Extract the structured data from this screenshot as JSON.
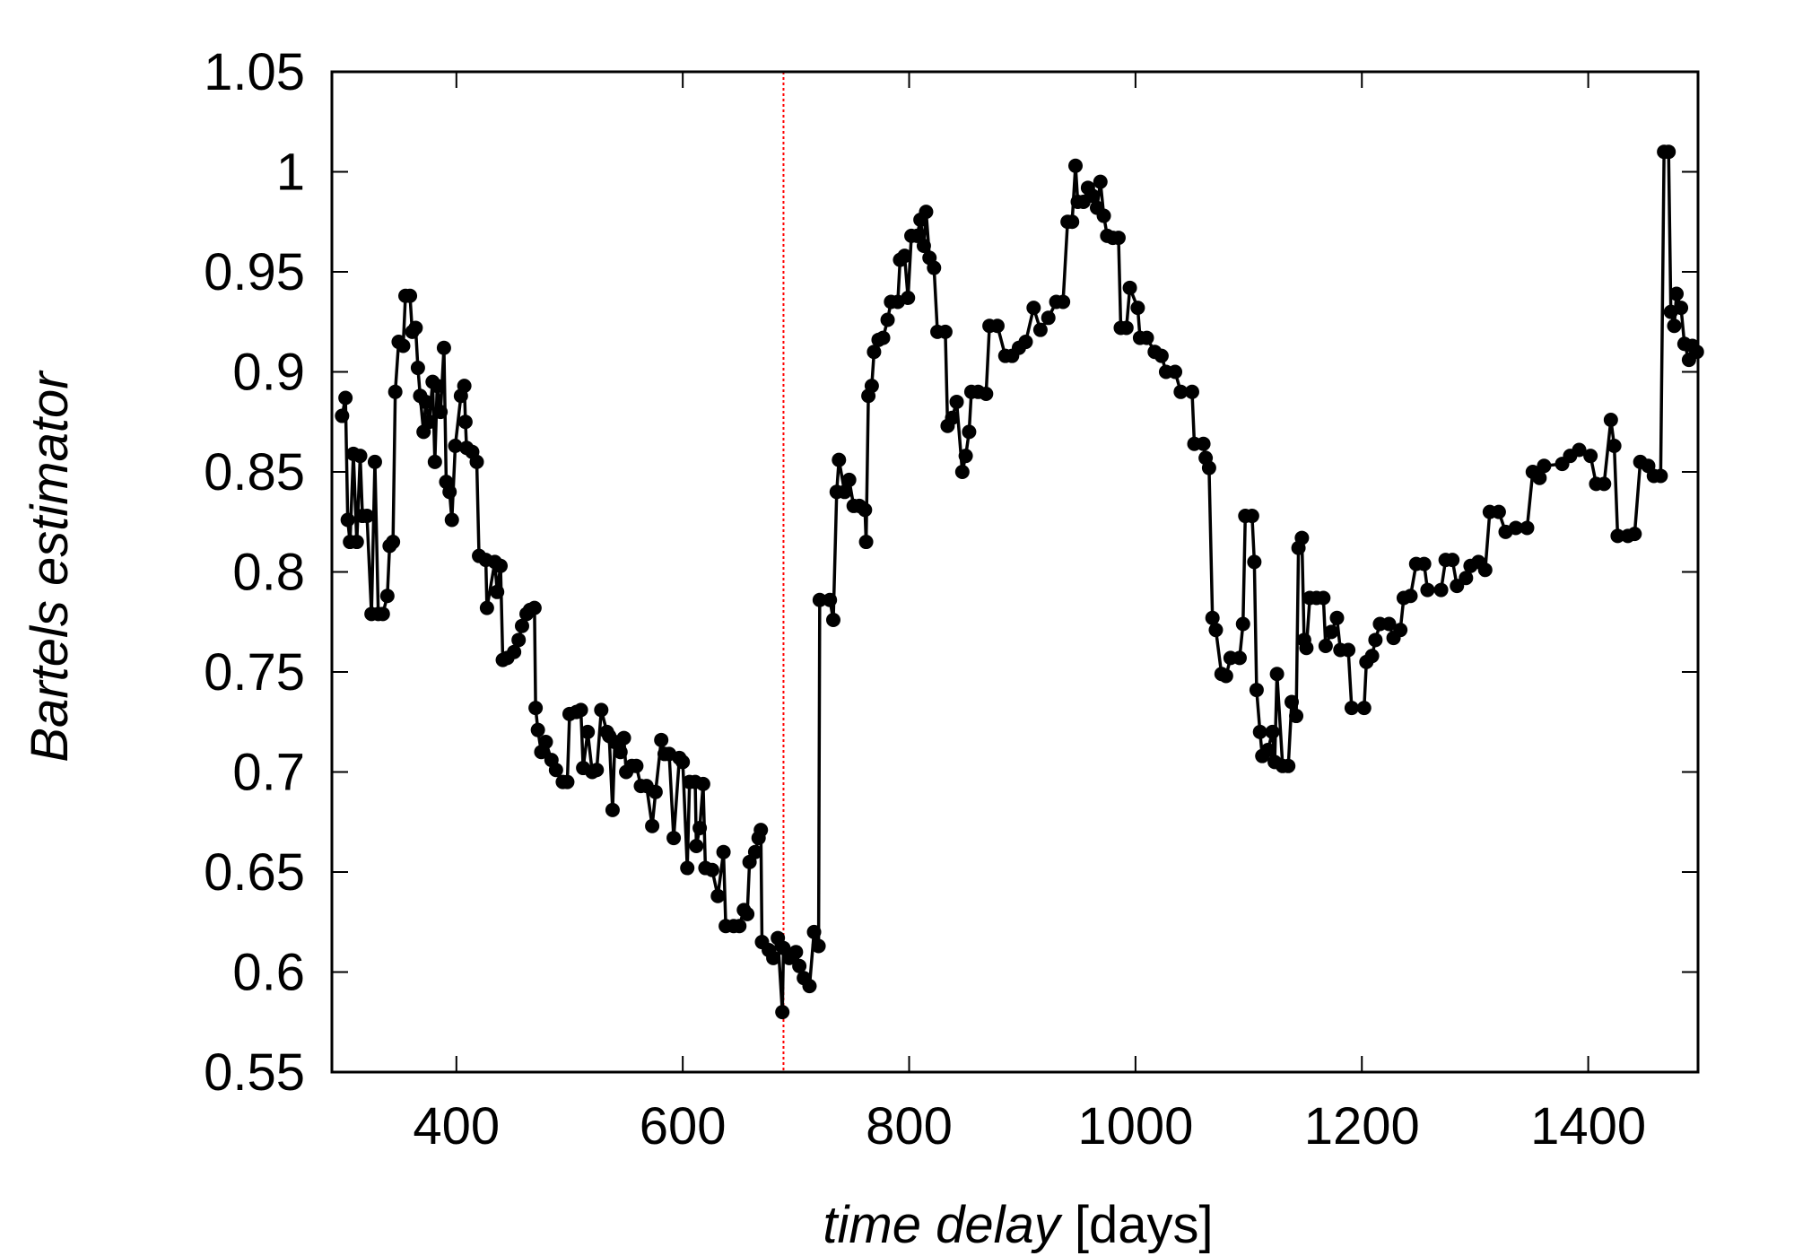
{
  "chart_data": {
    "type": "line",
    "xlabel": [
      "time delay",
      "[days]"
    ],
    "ylabel": "Bartels estimator",
    "xlim": [
      290,
      1497
    ],
    "ylim": [
      0.55,
      1.05
    ],
    "xticks": [
      400,
      600,
      800,
      1000,
      1200,
      1400
    ],
    "yticks": [
      0.55,
      0.6,
      0.65,
      0.7,
      0.75,
      0.8,
      0.85,
      0.9,
      0.95,
      1,
      1.05
    ],
    "vline": {
      "value": 689,
      "color": "#ff0000"
    },
    "x": [
      299,
      302,
      304,
      306,
      309,
      312,
      315,
      317,
      321,
      325,
      328,
      331,
      335,
      339,
      341,
      344,
      346,
      349,
      353,
      355,
      359,
      361,
      364,
      366,
      368,
      371,
      373,
      376,
      379,
      381,
      383,
      386,
      389,
      391,
      394,
      396,
      399,
      404,
      407,
      408,
      409,
      414,
      418,
      420,
      426,
      427,
      434,
      436,
      439,
      441,
      445,
      451,
      455,
      458,
      462,
      465,
      469,
      470,
      472,
      475,
      479,
      484,
      488,
      494,
      498,
      500,
      506,
      510,
      512,
      516,
      520,
      524,
      528,
      533,
      535,
      538,
      540,
      545,
      548,
      550,
      555,
      559,
      563,
      568,
      573,
      576,
      581,
      584,
      588,
      592,
      597,
      600,
      604,
      606,
      611,
      612,
      615,
      618,
      620,
      626,
      631,
      636,
      638,
      645,
      650,
      654,
      657,
      659,
      664,
      667,
      669,
      670,
      676,
      680,
      684,
      688,
      689,
      694,
      700,
      703,
      707,
      712,
      716,
      720,
      721,
      730,
      733,
      736,
      738,
      743,
      747,
      751,
      756,
      761,
      762,
      764,
      767,
      769,
      773,
      777,
      781,
      784,
      790,
      792,
      796,
      799,
      802,
      807,
      810,
      813,
      815,
      818,
      822,
      825,
      832,
      834,
      838,
      842,
      847,
      850,
      853,
      855,
      861,
      868,
      871,
      878,
      885,
      891,
      897,
      903,
      910,
      916,
      923,
      930,
      936,
      940,
      944,
      947,
      949,
      954,
      958,
      962,
      966,
      969,
      972,
      975,
      980,
      985,
      987,
      992,
      995,
      1002,
      1004,
      1010,
      1017,
      1023,
      1027,
      1035,
      1040,
      1050,
      1052,
      1060,
      1062,
      1065,
      1068,
      1071,
      1076,
      1080,
      1084,
      1092,
      1095,
      1097,
      1103,
      1105,
      1107,
      1110,
      1112,
      1117,
      1121,
      1123,
      1125,
      1130,
      1135,
      1138,
      1142,
      1144,
      1147,
      1149,
      1151,
      1154,
      1160,
      1166,
      1168,
      1173,
      1178,
      1181,
      1188,
      1191,
      1202,
      1204,
      1209,
      1212,
      1216,
      1224,
      1228,
      1234,
      1237,
      1243,
      1248,
      1255,
      1258,
      1270,
      1274,
      1280,
      1284,
      1292,
      1296,
      1303,
      1309,
      1313,
      1321,
      1327,
      1336,
      1346,
      1351,
      1357,
      1361,
      1377,
      1384,
      1392,
      1402,
      1407,
      1414,
      1420,
      1423,
      1426,
      1435,
      1441,
      1446,
      1453,
      1458,
      1464,
      1467,
      1471,
      1473,
      1476,
      1478,
      1482,
      1485,
      1489,
      1492,
      1496
    ],
    "series": [
      {
        "color": "#000000",
        "values": [
          0.878,
          0.887,
          0.826,
          0.815,
          0.859,
          0.815,
          0.858,
          0.828,
          0.828,
          0.779,
          0.855,
          0.779,
          0.779,
          0.788,
          0.813,
          0.815,
          0.89,
          0.915,
          0.913,
          0.938,
          0.938,
          0.92,
          0.922,
          0.902,
          0.888,
          0.87,
          0.885,
          0.875,
          0.895,
          0.855,
          0.893,
          0.88,
          0.912,
          0.845,
          0.84,
          0.826,
          0.863,
          0.888,
          0.893,
          0.875,
          0.862,
          0.86,
          0.855,
          0.808,
          0.806,
          0.782,
          0.805,
          0.79,
          0.803,
          0.756,
          0.757,
          0.76,
          0.766,
          0.773,
          0.779,
          0.781,
          0.782,
          0.732,
          0.721,
          0.71,
          0.715,
          0.706,
          0.701,
          0.695,
          0.695,
          0.729,
          0.73,
          0.731,
          0.702,
          0.72,
          0.7,
          0.701,
          0.731,
          0.72,
          0.718,
          0.681,
          0.715,
          0.71,
          0.717,
          0.7,
          0.703,
          0.703,
          0.693,
          0.693,
          0.673,
          0.69,
          0.716,
          0.709,
          0.709,
          0.667,
          0.707,
          0.705,
          0.652,
          0.695,
          0.695,
          0.663,
          0.672,
          0.694,
          0.652,
          0.651,
          0.638,
          0.66,
          0.623,
          0.623,
          0.623,
          0.631,
          0.629,
          0.655,
          0.66,
          0.667,
          0.671,
          0.615,
          0.611,
          0.607,
          0.617,
          0.58,
          0.612,
          0.607,
          0.61,
          0.603,
          0.597,
          0.593,
          0.62,
          0.613,
          0.786,
          0.786,
          0.776,
          0.84,
          0.856,
          0.84,
          0.846,
          0.833,
          0.833,
          0.831,
          0.815,
          0.888,
          0.893,
          0.91,
          0.916,
          0.917,
          0.926,
          0.935,
          0.935,
          0.956,
          0.958,
          0.937,
          0.968,
          0.968,
          0.976,
          0.963,
          0.98,
          0.957,
          0.952,
          0.92,
          0.92,
          0.873,
          0.877,
          0.885,
          0.85,
          0.858,
          0.87,
          0.89,
          0.89,
          0.889,
          0.923,
          0.923,
          0.908,
          0.908,
          0.912,
          0.915,
          0.932,
          0.921,
          0.927,
          0.935,
          0.935,
          0.975,
          0.975,
          1.003,
          0.985,
          0.985,
          0.992,
          0.988,
          0.982,
          0.995,
          0.978,
          0.968,
          0.967,
          0.967,
          0.922,
          0.922,
          0.942,
          0.932,
          0.917,
          0.917,
          0.91,
          0.908,
          0.9,
          0.9,
          0.89,
          0.89,
          0.864,
          0.864,
          0.857,
          0.852,
          0.777,
          0.771,
          0.749,
          0.748,
          0.757,
          0.757,
          0.774,
          0.828,
          0.828,
          0.805,
          0.741,
          0.72,
          0.708,
          0.711,
          0.72,
          0.705,
          0.749,
          0.703,
          0.703,
          0.735,
          0.728,
          0.812,
          0.817,
          0.766,
          0.762,
          0.787,
          0.787,
          0.787,
          0.763,
          0.77,
          0.777,
          0.761,
          0.761,
          0.732,
          0.732,
          0.755,
          0.758,
          0.766,
          0.774,
          0.774,
          0.767,
          0.771,
          0.787,
          0.788,
          0.804,
          0.804,
          0.791,
          0.791,
          0.806,
          0.806,
          0.793,
          0.797,
          0.803,
          0.805,
          0.801,
          0.83,
          0.83,
          0.82,
          0.822,
          0.822,
          0.85,
          0.847,
          0.853,
          0.854,
          0.858,
          0.861,
          0.858,
          0.844,
          0.844,
          0.876,
          0.863,
          0.818,
          0.818,
          0.819,
          0.855,
          0.853,
          0.848,
          0.848,
          1.01,
          1.01,
          0.93,
          0.923,
          0.939,
          0.932,
          0.914,
          0.906,
          0.913,
          0.91
        ]
      }
    ]
  }
}
